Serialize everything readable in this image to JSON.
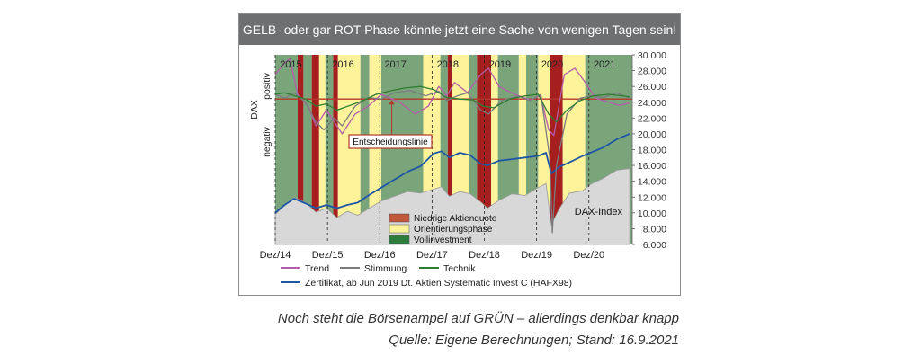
{
  "title": "GELB- oder gar ROT-Phase könnte jetzt eine Sache von wenigen Tagen sein!",
  "caption": "Noch steht die Börsenampel auf GRÜN – allerdings denkbar knapp",
  "source": "Quelle: Eigene Berechnungen; Stand: 16.9.2021",
  "colors": {
    "green_phase": "#7aa57b",
    "yellow_phase": "#fdf39a",
    "red_phase": "#a51f1e",
    "trend": "#b35ea8",
    "stimmung": "#7c7c80",
    "technik": "#2e7d32",
    "zertifikat": "#1f56a3",
    "dax_area": "#d8d8d8",
    "decision_line": "#b23a2a"
  },
  "chart_data": {
    "type": "line",
    "years": [
      "2015",
      "2016",
      "2017",
      "2018",
      "2019",
      "2020",
      "2021"
    ],
    "x_ticks": [
      "Dez/14",
      "Dez/15",
      "Dez/16",
      "Dez/17",
      "Dez/18",
      "Dez/19",
      "Dez/20"
    ],
    "x_range": [
      2014.92,
      2021.75
    ],
    "right_axis": {
      "ticks": [
        "30.000",
        "28.000",
        "26.000",
        "24.000",
        "22.000",
        "20.000",
        "18.000",
        "16.000",
        "14.000",
        "12.000",
        "10.000",
        "8.000",
        "6.000"
      ],
      "ylim": [
        6000,
        30000
      ]
    },
    "left_axis": {
      "label": "DAX",
      "upper": "positiv",
      "lower": "negativ"
    },
    "decision_line_label": "Entscheidungslinie",
    "decision_level": 24400,
    "phase_legend": [
      {
        "label": "Niedrige Aktienquote",
        "color": "#c0573a"
      },
      {
        "label": "Orientierungsphase",
        "color": "#fdf39a"
      },
      {
        "label": "Vollinvestment",
        "color": "#2f7d3a"
      }
    ],
    "phases": [
      {
        "start": 2014.92,
        "end": 2015.35,
        "phase": "green"
      },
      {
        "start": 2015.35,
        "end": 2015.46,
        "phase": "red"
      },
      {
        "start": 2015.46,
        "end": 2015.62,
        "phase": "green"
      },
      {
        "start": 2015.62,
        "end": 2015.76,
        "phase": "red"
      },
      {
        "start": 2015.76,
        "end": 2015.88,
        "phase": "yellow"
      },
      {
        "start": 2015.88,
        "end": 2016.03,
        "phase": "green"
      },
      {
        "start": 2016.03,
        "end": 2016.12,
        "phase": "red"
      },
      {
        "start": 2016.12,
        "end": 2016.55,
        "phase": "yellow"
      },
      {
        "start": 2016.55,
        "end": 2016.72,
        "phase": "green"
      },
      {
        "start": 2016.72,
        "end": 2016.95,
        "phase": "yellow"
      },
      {
        "start": 2016.95,
        "end": 2017.75,
        "phase": "green"
      },
      {
        "start": 2017.75,
        "end": 2018.08,
        "phase": "yellow"
      },
      {
        "start": 2018.08,
        "end": 2018.22,
        "phase": "green"
      },
      {
        "start": 2018.22,
        "end": 2018.31,
        "phase": "red"
      },
      {
        "start": 2018.31,
        "end": 2018.62,
        "phase": "yellow"
      },
      {
        "start": 2018.62,
        "end": 2018.78,
        "phase": "green"
      },
      {
        "start": 2018.78,
        "end": 2019.05,
        "phase": "red"
      },
      {
        "start": 2019.05,
        "end": 2019.18,
        "phase": "yellow"
      },
      {
        "start": 2019.18,
        "end": 2019.58,
        "phase": "green"
      },
      {
        "start": 2019.58,
        "end": 2019.72,
        "phase": "yellow"
      },
      {
        "start": 2019.72,
        "end": 2019.95,
        "phase": "green"
      },
      {
        "start": 2019.95,
        "end": 2020.17,
        "phase": "yellow"
      },
      {
        "start": 2020.17,
        "end": 2020.42,
        "phase": "red"
      },
      {
        "start": 2020.42,
        "end": 2020.85,
        "phase": "yellow"
      },
      {
        "start": 2020.85,
        "end": 2021.75,
        "phase": "green"
      }
    ],
    "series": [
      {
        "name": "DAX-Index",
        "style": "area",
        "points": [
          [
            2014.92,
            9800
          ],
          [
            2015.1,
            11000
          ],
          [
            2015.28,
            12000
          ],
          [
            2015.5,
            11300
          ],
          [
            2015.7,
            10100
          ],
          [
            2015.9,
            10600
          ],
          [
            2016.1,
            9400
          ],
          [
            2016.3,
            10200
          ],
          [
            2016.5,
            9700
          ],
          [
            2016.7,
            10500
          ],
          [
            2016.95,
            11500
          ],
          [
            2017.2,
            12100
          ],
          [
            2017.45,
            12700
          ],
          [
            2017.7,
            12500
          ],
          [
            2017.95,
            13000
          ],
          [
            2018.1,
            13300
          ],
          [
            2018.25,
            12100
          ],
          [
            2018.45,
            12700
          ],
          [
            2018.65,
            12400
          ],
          [
            2018.85,
            11400
          ],
          [
            2018.98,
            10600
          ],
          [
            2019.2,
            11600
          ],
          [
            2019.45,
            12400
          ],
          [
            2019.7,
            12200
          ],
          [
            2019.95,
            13200
          ],
          [
            2020.1,
            13700
          ],
          [
            2020.2,
            8500
          ],
          [
            2020.35,
            10500
          ],
          [
            2020.55,
            12500
          ],
          [
            2020.8,
            12800
          ],
          [
            2020.95,
            13600
          ],
          [
            2021.2,
            14400
          ],
          [
            2021.45,
            15400
          ],
          [
            2021.7,
            15600
          ]
        ]
      },
      {
        "name": "Zertifikat, ab Jun 2019 Dt. Aktien Systematic Invest C (HAFX98)",
        "points": [
          [
            2014.92,
            10000
          ],
          [
            2015.1,
            11000
          ],
          [
            2015.28,
            11800
          ],
          [
            2015.5,
            11200
          ],
          [
            2015.7,
            10600
          ],
          [
            2015.9,
            11000
          ],
          [
            2016.1,
            10600
          ],
          [
            2016.3,
            11000
          ],
          [
            2016.5,
            11300
          ],
          [
            2016.7,
            12200
          ],
          [
            2016.95,
            13200
          ],
          [
            2017.2,
            14200
          ],
          [
            2017.45,
            15200
          ],
          [
            2017.7,
            15900
          ],
          [
            2017.95,
            17500
          ],
          [
            2018.1,
            17800
          ],
          [
            2018.25,
            17000
          ],
          [
            2018.45,
            17600
          ],
          [
            2018.65,
            17300
          ],
          [
            2018.85,
            16200
          ],
          [
            2018.98,
            16000
          ],
          [
            2019.2,
            16600
          ],
          [
            2019.45,
            16800
          ],
          [
            2019.7,
            17000
          ],
          [
            2019.95,
            17200
          ],
          [
            2020.1,
            17600
          ],
          [
            2020.2,
            15000
          ],
          [
            2020.35,
            15800
          ],
          [
            2020.55,
            16400
          ],
          [
            2020.8,
            17200
          ],
          [
            2020.95,
            17600
          ],
          [
            2021.2,
            18300
          ],
          [
            2021.45,
            19300
          ],
          [
            2021.7,
            20000
          ]
        ]
      },
      {
        "name": "Trend",
        "points": [
          [
            2014.92,
            27500
          ],
          [
            2015.1,
            29000
          ],
          [
            2015.2,
            29500
          ],
          [
            2015.35,
            25000
          ],
          [
            2015.55,
            23500
          ],
          [
            2015.7,
            21000
          ],
          [
            2015.9,
            23000
          ],
          [
            2016.05,
            21500
          ],
          [
            2016.2,
            20000
          ],
          [
            2016.45,
            22500
          ],
          [
            2016.7,
            23500
          ],
          [
            2016.95,
            25000
          ],
          [
            2017.3,
            24000
          ],
          [
            2017.6,
            22500
          ],
          [
            2017.85,
            23500
          ],
          [
            2018.05,
            26000
          ],
          [
            2018.2,
            24800
          ],
          [
            2018.35,
            26500
          ],
          [
            2018.6,
            25200
          ],
          [
            2018.85,
            27500
          ],
          [
            2019.0,
            28300
          ],
          [
            2019.2,
            26000
          ],
          [
            2019.5,
            25000
          ],
          [
            2019.8,
            24300
          ],
          [
            2020.0,
            24800
          ],
          [
            2020.15,
            20500
          ],
          [
            2020.25,
            19800
          ],
          [
            2020.45,
            27500
          ],
          [
            2020.65,
            28300
          ],
          [
            2020.85,
            26500
          ],
          [
            2021.05,
            24500
          ],
          [
            2021.3,
            24000
          ],
          [
            2021.5,
            23600
          ],
          [
            2021.7,
            23900
          ]
        ]
      },
      {
        "name": "Stimmung",
        "points": [
          [
            2014.92,
            25000
          ],
          [
            2015.1,
            24500
          ],
          [
            2015.28,
            25200
          ],
          [
            2015.5,
            24000
          ],
          [
            2015.7,
            21500
          ],
          [
            2015.85,
            20500
          ],
          [
            2016.05,
            22000
          ],
          [
            2016.2,
            21000
          ],
          [
            2016.45,
            23500
          ],
          [
            2016.7,
            24600
          ],
          [
            2016.95,
            24400
          ],
          [
            2017.2,
            25200
          ],
          [
            2017.5,
            25500
          ],
          [
            2017.8,
            24800
          ],
          [
            2018.05,
            25400
          ],
          [
            2018.2,
            24200
          ],
          [
            2018.4,
            24800
          ],
          [
            2018.6,
            25200
          ],
          [
            2018.85,
            23000
          ],
          [
            2019.0,
            22500
          ],
          [
            2019.25,
            24200
          ],
          [
            2019.55,
            24800
          ],
          [
            2019.8,
            24200
          ],
          [
            2020.0,
            25000
          ],
          [
            2020.17,
            17000
          ],
          [
            2020.22,
            7500
          ],
          [
            2020.3,
            16000
          ],
          [
            2020.5,
            22500
          ],
          [
            2020.75,
            24500
          ],
          [
            2020.95,
            24800
          ],
          [
            2021.2,
            24600
          ],
          [
            2021.45,
            25200
          ],
          [
            2021.7,
            24500
          ]
        ]
      },
      {
        "name": "Technik",
        "points": [
          [
            2014.92,
            25000
          ],
          [
            2015.1,
            25200
          ],
          [
            2015.3,
            24800
          ],
          [
            2015.5,
            24400
          ],
          [
            2015.7,
            23500
          ],
          [
            2015.9,
            23800
          ],
          [
            2016.1,
            23000
          ],
          [
            2016.35,
            23600
          ],
          [
            2016.6,
            24200
          ],
          [
            2016.85,
            25000
          ],
          [
            2017.1,
            25400
          ],
          [
            2017.4,
            25800
          ],
          [
            2017.7,
            26000
          ],
          [
            2017.95,
            25600
          ],
          [
            2018.2,
            24600
          ],
          [
            2018.45,
            24400
          ],
          [
            2018.7,
            24300
          ],
          [
            2018.9,
            23500
          ],
          [
            2019.1,
            23300
          ],
          [
            2019.4,
            24400
          ],
          [
            2019.7,
            24800
          ],
          [
            2019.95,
            25000
          ],
          [
            2020.15,
            22500
          ],
          [
            2020.3,
            21500
          ],
          [
            2020.5,
            23000
          ],
          [
            2020.75,
            24200
          ],
          [
            2021.0,
            24800
          ],
          [
            2021.3,
            25000
          ],
          [
            2021.7,
            24700
          ]
        ]
      }
    ]
  }
}
